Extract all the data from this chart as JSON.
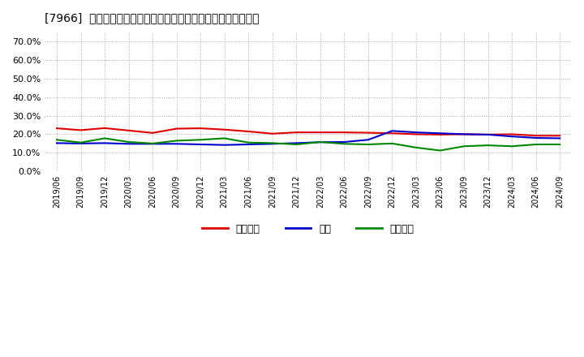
{
  "title": "[7966]  売上債権、在庫、買入債務の総資産に対する比率の推移",
  "background_color": "#ffffff",
  "plot_bg_color": "#ffffff",
  "grid_color": "#aaaaaa",
  "legend_labels": [
    "売上債権",
    "在庫",
    "買入債務"
  ],
  "line_colors": [
    "#dd0000",
    "#0000cc",
    "#008800"
  ],
  "ylim": [
    0.0,
    0.75
  ],
  "yticks": [
    0.0,
    0.1,
    0.2,
    0.3,
    0.4,
    0.5,
    0.6,
    0.7
  ],
  "dates": [
    "2019/06",
    "2019/09",
    "2019/12",
    "2020/03",
    "2020/06",
    "2020/09",
    "2020/12",
    "2021/03",
    "2021/06",
    "2021/09",
    "2021/12",
    "2022/03",
    "2022/06",
    "2022/09",
    "2022/12",
    "2023/03",
    "2023/06",
    "2023/09",
    "2023/12",
    "2024/03",
    "2024/06",
    "2024/09"
  ],
  "urikake": [
    0.232,
    0.222,
    0.233,
    0.22,
    0.207,
    0.23,
    0.232,
    0.225,
    0.215,
    0.203,
    0.21,
    0.21,
    0.21,
    0.208,
    0.205,
    0.2,
    0.198,
    0.2,
    0.198,
    0.2,
    0.192,
    0.192
  ],
  "zaiko": [
    0.152,
    0.15,
    0.152,
    0.148,
    0.148,
    0.148,
    0.145,
    0.142,
    0.145,
    0.148,
    0.152,
    0.157,
    0.158,
    0.17,
    0.218,
    0.21,
    0.205,
    0.2,
    0.198,
    0.188,
    0.18,
    0.178
  ],
  "kaiire": [
    0.17,
    0.155,
    0.178,
    0.158,
    0.15,
    0.165,
    0.17,
    0.178,
    0.155,
    0.152,
    0.145,
    0.158,
    0.148,
    0.145,
    0.15,
    0.128,
    0.112,
    0.135,
    0.14,
    0.135,
    0.145,
    0.145
  ]
}
